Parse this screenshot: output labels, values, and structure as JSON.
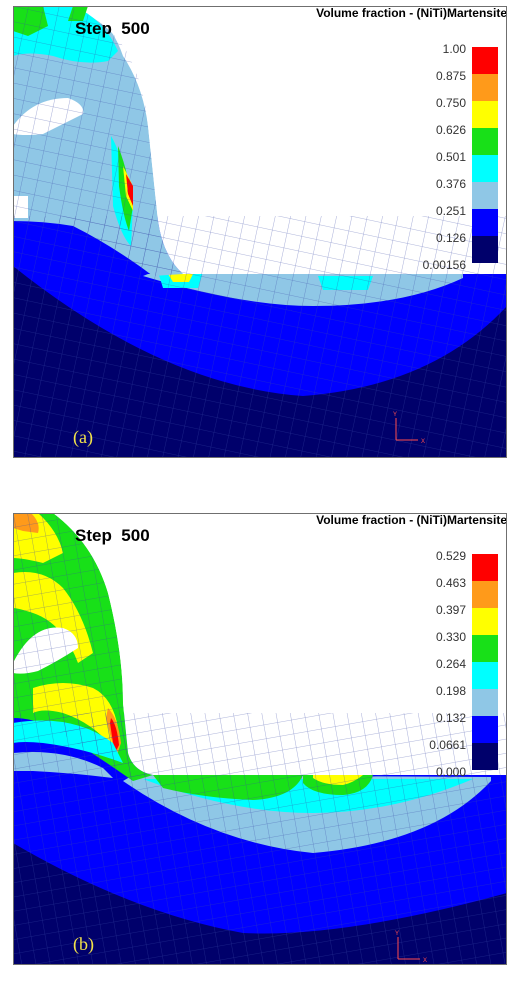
{
  "panels": [
    {
      "id": "a",
      "step_label": "Step  500",
      "legend_title": "Volume fraction - (NiTi)Martensite",
      "legend_values": [
        "1.00",
        "0.875",
        "0.750",
        "0.626",
        "0.501",
        "0.376",
        "0.251",
        "0.126",
        "0.00156"
      ],
      "panel_letter": "(a)"
    },
    {
      "id": "b",
      "step_label": "Step  500",
      "legend_title": "Volume fraction - (NiTi)Martensite",
      "legend_values": [
        "0.529",
        "0.463",
        "0.397",
        "0.330",
        "0.264",
        "0.198",
        "0.132",
        "0.0661",
        "0.000"
      ],
      "panel_letter": "(b)"
    }
  ],
  "axes": {
    "y": "Y",
    "x": "X"
  },
  "colors": {
    "navy": "#00006b",
    "blue": "#0000ff",
    "lightblue": "#8fc7e6",
    "cyan": "#00ffff",
    "green": "#18e018",
    "yellow": "#ffff00",
    "orange": "#ff9a1a",
    "red": "#ff0000",
    "mesh": "#3a4aa8"
  }
}
